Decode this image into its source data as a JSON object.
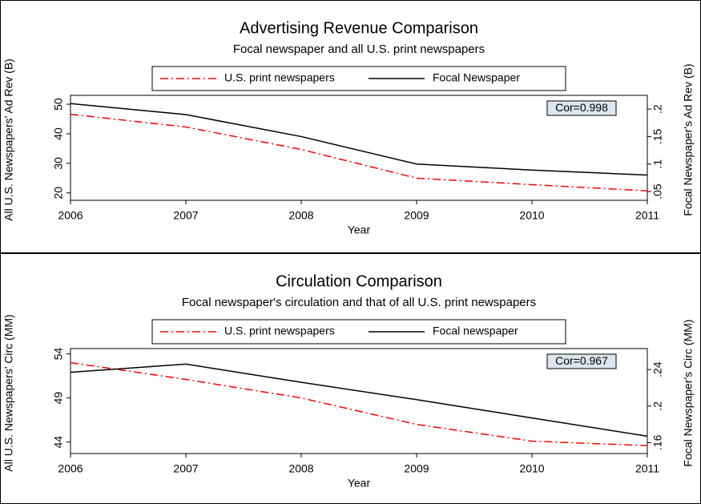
{
  "chart_data": [
    {
      "type": "line",
      "title": "Advertising Revenue Comparison",
      "subtitle": "Focal newspaper and all U.S. print newspapers",
      "x_label": "Year",
      "y_label": "All U.S. Newspapers' Ad Rev (B)",
      "y2_label": "Focal Newspaper's Ad Rev (B)",
      "annotation": "Cor=0.998",
      "x": [
        2006,
        2007,
        2008,
        2009,
        2010,
        2011
      ],
      "xlim": [
        2006,
        2011
      ],
      "xticks": [
        2006,
        2007,
        2008,
        2009,
        2010,
        2011
      ],
      "ylim": [
        17.5,
        53
      ],
      "yticks": [
        20,
        30,
        40,
        50
      ],
      "y2lim": [
        0.034,
        0.225
      ],
      "y2ticks": [
        {
          "value": 0.05,
          "label": ".05"
        },
        {
          "value": 0.1,
          "label": ".1"
        },
        {
          "value": 0.15,
          "label": ".15"
        },
        {
          "value": 0.2,
          "label": ".2"
        }
      ],
      "series": [
        {
          "name": "U.S. print newspapers",
          "color": "#ff0000",
          "style": "dashdot",
          "axis": "y",
          "values": [
            46.6,
            42.3,
            34.7,
            25.0,
            22.8,
            20.7
          ]
        },
        {
          "name": "Focal Newspaper",
          "color": "#000000",
          "style": "solid",
          "axis": "y2",
          "values": [
            0.21,
            0.19,
            0.15,
            0.1,
            0.089,
            0.08
          ]
        }
      ]
    },
    {
      "type": "line",
      "title": "Circulation Comparison",
      "subtitle": "Focal newspaper's circulation and that of all U.S. print newspapers",
      "x_label": "Year",
      "y_label": "All U.S. Newspapers' Circ (MM)",
      "y2_label": "Focal Newspaper's Circ (MM)",
      "annotation": "Cor=0.967",
      "x": [
        2006,
        2007,
        2008,
        2009,
        2010,
        2011
      ],
      "xlim": [
        2006,
        2011
      ],
      "xticks": [
        2006,
        2007,
        2008,
        2009,
        2010,
        2011
      ],
      "ylim": [
        42.7,
        54.6
      ],
      "yticks": [
        44,
        49,
        54
      ],
      "y2lim": [
        0.148,
        0.263
      ],
      "y2ticks": [
        {
          "value": 0.16,
          "label": ".16"
        },
        {
          "value": 0.2,
          "label": ".2"
        },
        {
          "value": 0.24,
          "label": ".24"
        }
      ],
      "series": [
        {
          "name": "U.S. print newspapers",
          "color": "#ff0000",
          "style": "dashdot",
          "axis": "y",
          "values": [
            53.0,
            51.1,
            49.0,
            46.0,
            44.1,
            43.6
          ]
        },
        {
          "name": "Focal newspaper",
          "color": "#000000",
          "style": "solid",
          "axis": "y2",
          "values": [
            0.237,
            0.246,
            0.226,
            0.207,
            0.187,
            0.167
          ]
        }
      ]
    }
  ]
}
